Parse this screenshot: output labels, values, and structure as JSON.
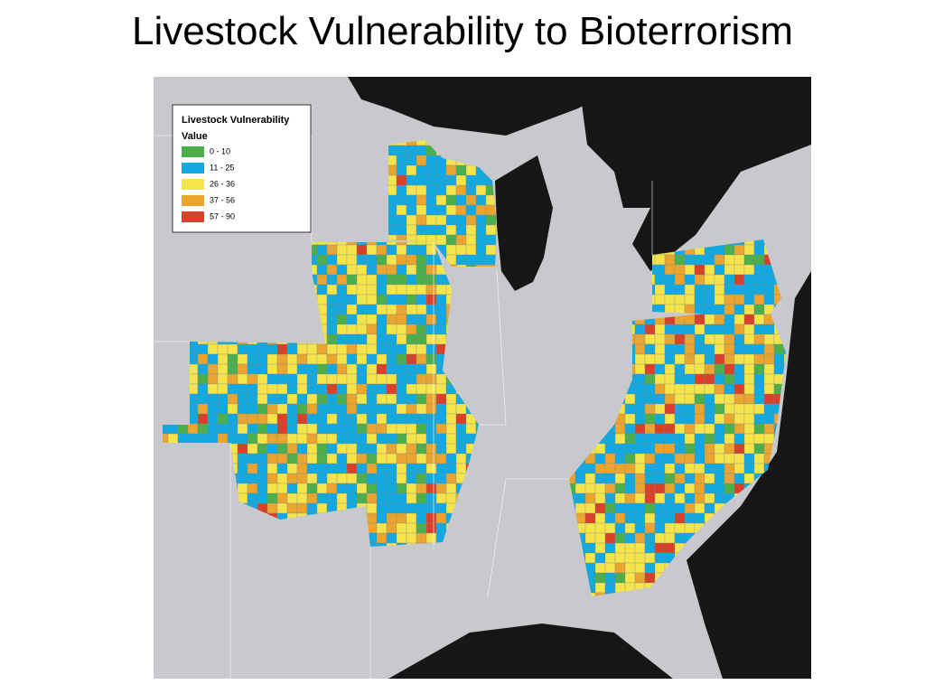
{
  "title": "Livestock Vulnerability to Bioterrorism",
  "legend": {
    "title": "Livestock Vulnerability",
    "subtitle": "Value",
    "items": [
      {
        "label": "0 - 10",
        "color": "#4cae4c"
      },
      {
        "label": "11 - 25",
        "color": "#12a8e0"
      },
      {
        "label": "26 - 36",
        "color": "#f5e44a"
      },
      {
        "label": "37 - 56",
        "color": "#e9a530"
      },
      {
        "label": "57 - 90",
        "color": "#d8402a"
      }
    ]
  }
}
